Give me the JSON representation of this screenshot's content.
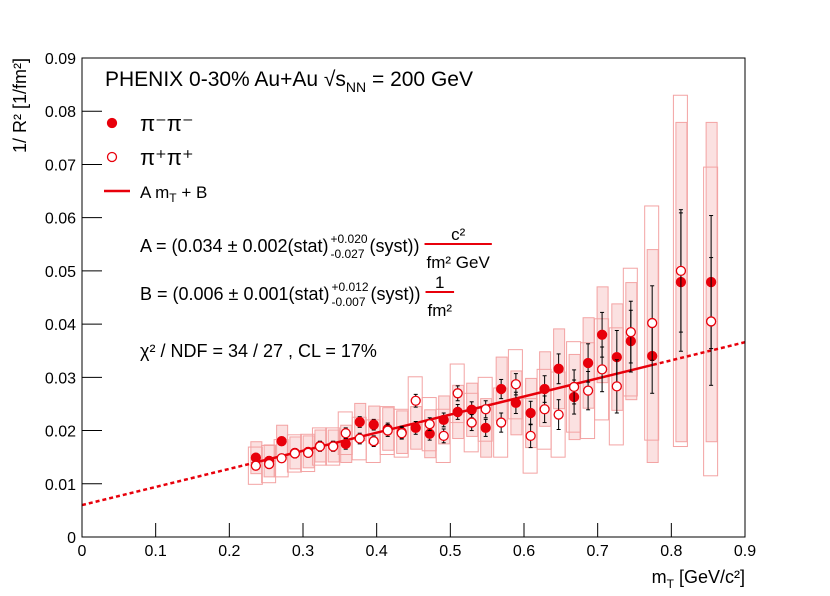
{
  "chart_data": {
    "type": "scatter",
    "title": {
      "text": "PHENIX 0-30%  Au+Au  √s",
      "sub": "NN",
      "tail": " = 200 GeV"
    },
    "x_label": {
      "text": "m",
      "sub": "T",
      "tail": " [GeV/c²]"
    },
    "y_label": "1/ R² [1/fm²]",
    "xlim": [
      0,
      0.9
    ],
    "ylim": [
      0,
      0.09
    ],
    "xticks": [
      0,
      0.1,
      0.2,
      0.3,
      0.4,
      0.5,
      0.6,
      0.7,
      0.8,
      0.9
    ],
    "yticks": [
      0,
      0.01,
      0.02,
      0.03,
      0.04,
      0.05,
      0.06,
      0.07,
      0.08,
      0.09
    ],
    "x": [
      0.236,
      0.254,
      0.271,
      0.289,
      0.307,
      0.323,
      0.341,
      0.358,
      0.377,
      0.396,
      0.415,
      0.434,
      0.453,
      0.472,
      0.491,
      0.51,
      0.529,
      0.548,
      0.569,
      0.589,
      0.609,
      0.628,
      0.647,
      0.668,
      0.687,
      0.706,
      0.726,
      0.745,
      0.774,
      0.813,
      0.854
    ],
    "series": [
      {
        "name": "π⁻π⁻",
        "color": "#e8000b",
        "marker": "filled",
        "values": [
          0.0149,
          0.0143,
          0.018,
          0.0158,
          0.016,
          0.0171,
          0.0171,
          0.0175,
          0.0216,
          0.0211,
          0.0203,
          0.0197,
          0.0205,
          0.0194,
          0.022,
          0.0235,
          0.0239,
          0.0205,
          0.0278,
          0.0252,
          0.0233,
          0.0278,
          0.0316,
          0.0263,
          0.0327,
          0.038,
          0.0338,
          0.0368,
          0.034,
          0.0479,
          0.0479
        ],
        "errors": [
          0.0008,
          0.0008,
          0.0008,
          0.0008,
          0.0008,
          0.0009,
          0.0009,
          0.001,
          0.001,
          0.001,
          0.0011,
          0.0011,
          0.0012,
          0.0012,
          0.0013,
          0.0014,
          0.0015,
          0.0016,
          0.0018,
          0.002,
          0.0022,
          0.0025,
          0.0028,
          0.0032,
          0.0036,
          0.0042,
          0.005,
          0.0058,
          0.007,
          0.013,
          0.0125
        ],
        "syst": [
          0.003,
          0.003,
          0.003,
          0.003,
          0.003,
          0.003,
          0.003,
          0.0035,
          0.0035,
          0.0035,
          0.004,
          0.004,
          0.004,
          0.0045,
          0.0045,
          0.005,
          0.005,
          0.0055,
          0.006,
          0.006,
          0.0065,
          0.007,
          0.0075,
          0.008,
          0.0085,
          0.009,
          0.01,
          0.011,
          0.02,
          0.03,
          0.03
        ]
      },
      {
        "name": "π⁺π⁺",
        "color": "#e8000b",
        "marker": "open",
        "values": [
          0.0134,
          0.0137,
          0.0148,
          0.0157,
          0.0158,
          0.017,
          0.017,
          0.0195,
          0.0185,
          0.018,
          0.02,
          0.0195,
          0.0256,
          0.0212,
          0.019,
          0.027,
          0.0215,
          0.024,
          0.0215,
          0.0287,
          0.019,
          0.024,
          0.023,
          0.0282,
          0.0275,
          0.0315,
          0.0283,
          0.0385,
          0.0402,
          0.05,
          0.0405
        ],
        "errors": [
          0.0008,
          0.0008,
          0.0008,
          0.0008,
          0.0008,
          0.0009,
          0.0009,
          0.001,
          0.001,
          0.001,
          0.0011,
          0.0011,
          0.0012,
          0.0012,
          0.0013,
          0.0014,
          0.0015,
          0.0016,
          0.0018,
          0.002,
          0.0022,
          0.0025,
          0.0028,
          0.0032,
          0.0036,
          0.0042,
          0.005,
          0.0058,
          0.007,
          0.0115,
          0.012
        ],
        "syst": [
          0.0035,
          0.0035,
          0.0035,
          0.0035,
          0.0035,
          0.0035,
          0.0035,
          0.004,
          0.004,
          0.004,
          0.0045,
          0.0045,
          0.0045,
          0.005,
          0.005,
          0.0055,
          0.0055,
          0.006,
          0.0065,
          0.0065,
          0.007,
          0.0075,
          0.008,
          0.0085,
          0.009,
          0.0095,
          0.011,
          0.012,
          0.022,
          0.033,
          0.029
        ]
      }
    ],
    "fit": {
      "name": "A m",
      "name_sub": "T",
      "name_tail": " + B",
      "color": "#e8000b",
      "slope": 0.034,
      "intercept": 0.006,
      "xrange": [
        0.23,
        0.775
      ]
    },
    "annotations": [
      {
        "text": "A = (0.034 ± 0.002(stat)",
        "upper": "+0.020",
        "lower": "-0.027",
        "tail": "(syst))",
        "num": "c²",
        "den": "fm² GeV"
      },
      {
        "text": "B = (0.006 ± 0.001(stat)",
        "upper": "+0.012",
        "lower": "-0.007",
        "tail": "(syst))",
        "num": "1",
        "den": "fm²"
      },
      {
        "text": "χ² / NDF = 34 / 27 , CL = 17%"
      }
    ]
  }
}
